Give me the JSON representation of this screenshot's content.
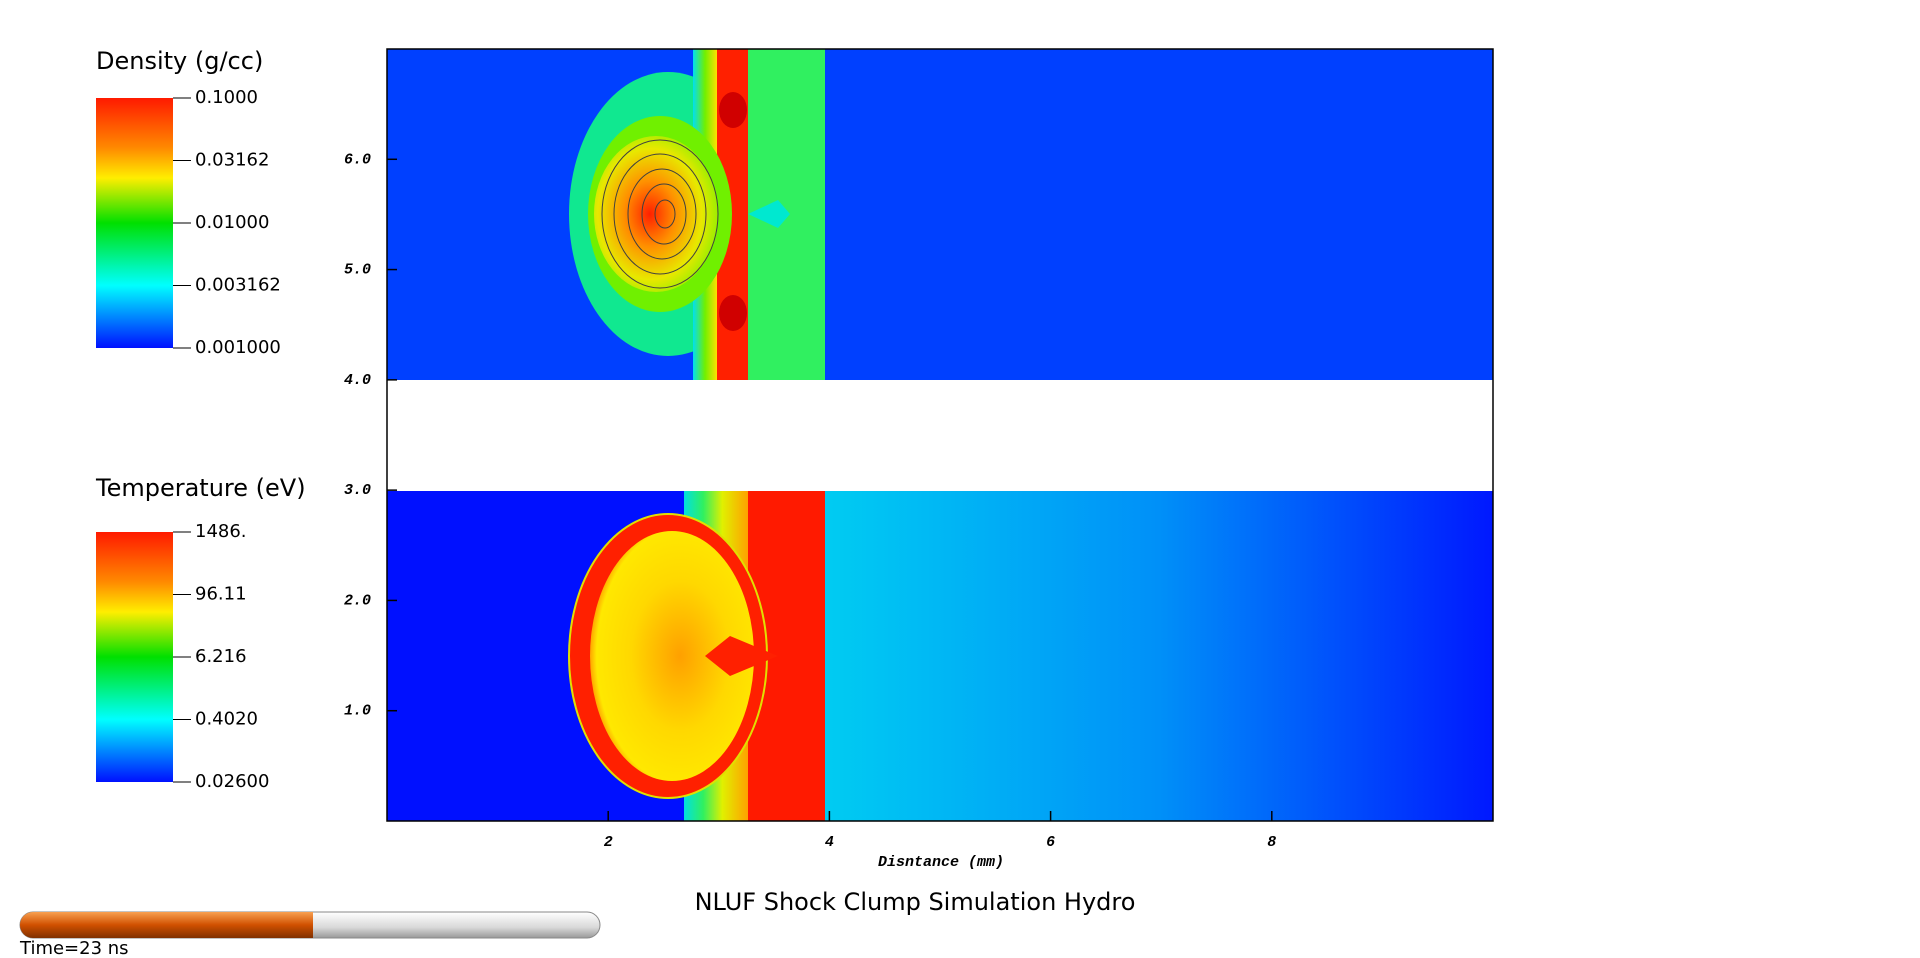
{
  "chart_data": {
    "type": "heatmap",
    "title": "NLUF Shock Clump Simulation Hydro",
    "xlabel": "Disntance (mm)",
    "xlim": [
      0,
      10
    ],
    "xticks": [
      2,
      4,
      6,
      8
    ],
    "ylim": [
      0,
      7
    ],
    "yticks": [
      {
        "value": 1,
        "label": "1.0"
      },
      {
        "value": 2,
        "label": "2.0"
      },
      {
        "value": 3,
        "label": "3.0"
      },
      {
        "value": 4,
        "label": "4.0"
      },
      {
        "value": 5,
        "label": "5.0"
      },
      {
        "value": 6,
        "label": "6.0"
      }
    ],
    "time_label": "Time=23 ns",
    "legends": [
      {
        "title": "Density (g/cc)",
        "log_scale": true,
        "vlim": [
          0.001,
          0.1
        ],
        "ticks": [
          {
            "value": 0.1,
            "label": "0.1000"
          },
          {
            "value": 0.03162,
            "label": "0.03162"
          },
          {
            "value": 0.01,
            "label": "0.01000"
          },
          {
            "value": 0.003162,
            "label": "0.003162"
          },
          {
            "value": 0.001,
            "label": "0.001000"
          }
        ]
      },
      {
        "title": "Temperature (eV)",
        "log_scale": true,
        "vlim": [
          0.026,
          1486
        ],
        "ticks": [
          {
            "value": 1486,
            "label": "1486."
          },
          {
            "value": 96.11,
            "label": "96.11"
          },
          {
            "value": 6.216,
            "label": "6.216"
          },
          {
            "value": 0.402,
            "label": "0.4020"
          },
          {
            "value": 0.026,
            "label": "0.02600"
          }
        ]
      }
    ]
  }
}
